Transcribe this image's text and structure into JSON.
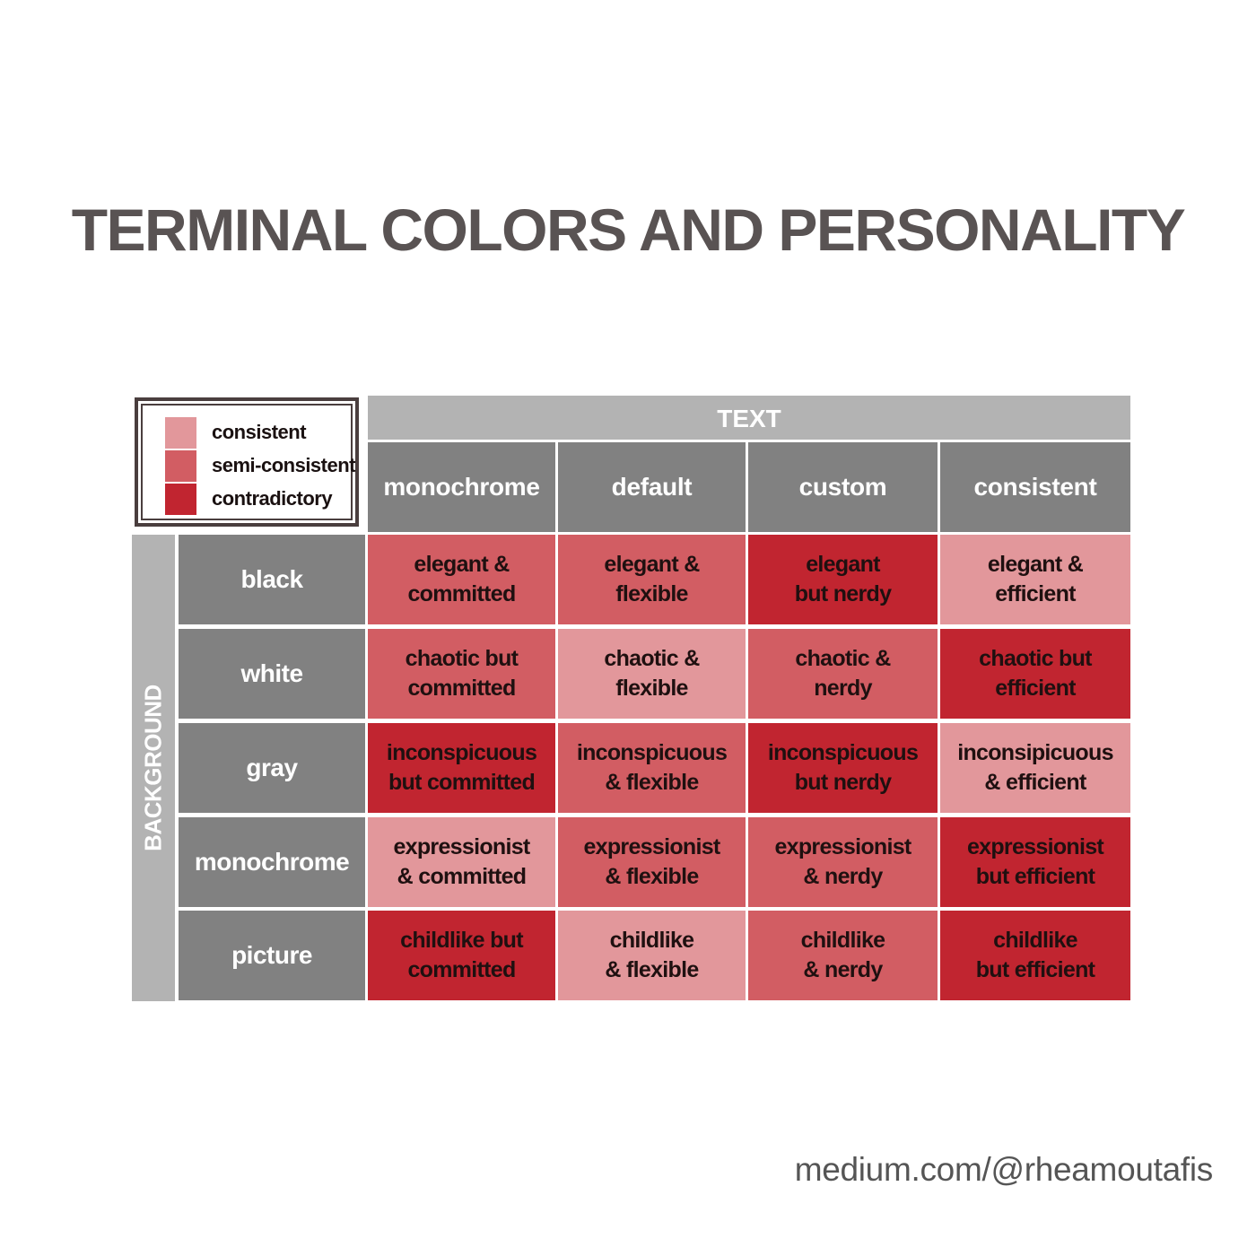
{
  "title": "TERMINAL COLORS AND PERSONALITY",
  "credit": "medium.com/@rheamoutafis",
  "colors": {
    "consistent": "#e2979b",
    "semi-consistent": "#d25d63",
    "contradictory": "#c12530",
    "header_dark": "#818181",
    "header_light": "#b3b3b3"
  },
  "chart_data": {
    "type": "table",
    "legend": [
      {
        "label": "consistent",
        "level": "consistent"
      },
      {
        "label": "semi-consistent",
        "level": "semi-consistent"
      },
      {
        "label": "contradictory",
        "level": "contradictory"
      }
    ],
    "column_group_label": "TEXT",
    "row_group_label": "BACKGROUND",
    "columns": [
      "monochrome",
      "default",
      "custom",
      "consistent"
    ],
    "rows": [
      {
        "label": "black",
        "cells": [
          {
            "lines": [
              "elegant &",
              "committed"
            ],
            "level": "semi-consistent"
          },
          {
            "lines": [
              "elegant &",
              "flexible"
            ],
            "level": "semi-consistent"
          },
          {
            "lines": [
              "elegant",
              "but nerdy"
            ],
            "level": "contradictory"
          },
          {
            "lines": [
              "elegant &",
              "efficient"
            ],
            "level": "consistent"
          }
        ]
      },
      {
        "label": "white",
        "cells": [
          {
            "lines": [
              "chaotic but",
              "committed"
            ],
            "level": "semi-consistent"
          },
          {
            "lines": [
              "chaotic &",
              "flexible"
            ],
            "level": "consistent"
          },
          {
            "lines": [
              "chaotic &",
              "nerdy"
            ],
            "level": "semi-consistent"
          },
          {
            "lines": [
              "chaotic but",
              "efficient"
            ],
            "level": "contradictory"
          }
        ]
      },
      {
        "label": "gray",
        "cells": [
          {
            "lines": [
              "inconspicuous",
              "but committed"
            ],
            "level": "contradictory"
          },
          {
            "lines": [
              "inconspicuous",
              "& flexible"
            ],
            "level": "semi-consistent"
          },
          {
            "lines": [
              "inconspicuous",
              "but nerdy"
            ],
            "level": "contradictory"
          },
          {
            "lines": [
              "inconsipicuous",
              "& efficient"
            ],
            "level": "consistent"
          }
        ]
      },
      {
        "label": "monochrome",
        "cells": [
          {
            "lines": [
              "expressionist",
              "& committed"
            ],
            "level": "consistent"
          },
          {
            "lines": [
              "expressionist",
              "& flexible"
            ],
            "level": "semi-consistent"
          },
          {
            "lines": [
              "expressionist",
              "& nerdy"
            ],
            "level": "semi-consistent"
          },
          {
            "lines": [
              "expressionist",
              "but efficient"
            ],
            "level": "contradictory"
          }
        ]
      },
      {
        "label": "picture",
        "cells": [
          {
            "lines": [
              "childlike but",
              "committed"
            ],
            "level": "contradictory"
          },
          {
            "lines": [
              "childlike",
              "& flexible"
            ],
            "level": "consistent"
          },
          {
            "lines": [
              "childlike",
              "& nerdy"
            ],
            "level": "semi-consistent"
          },
          {
            "lines": [
              "childlike",
              "but efficient"
            ],
            "level": "contradictory"
          }
        ]
      }
    ]
  }
}
